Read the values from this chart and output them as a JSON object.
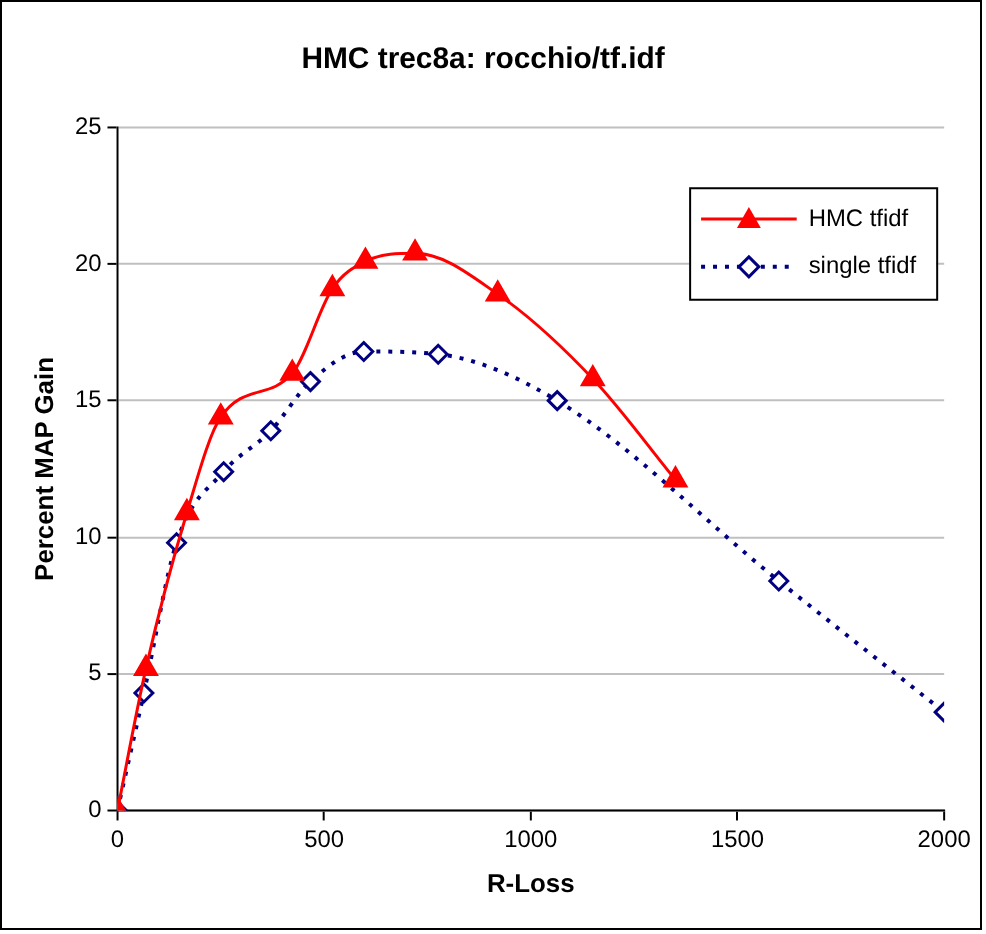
{
  "chart_data": {
    "type": "line",
    "title": "HMC trec8a: rocchio/tf.idf",
    "xlabel": "R-Loss",
    "ylabel": "Percent MAP Gain",
    "xlim": [
      0,
      2000
    ],
    "xticks": [
      0,
      500,
      1000,
      1500,
      2000
    ],
    "ylim": [
      0,
      25
    ],
    "yticks": [
      0,
      5,
      10,
      15,
      20,
      25
    ],
    "grid": "y",
    "legend": "top right",
    "series": [
      {
        "name": "HMC tfidf",
        "color": "#ff0000",
        "marker": "triangle",
        "line_style": "solid",
        "x": [
          0,
          69,
          168,
          250,
          423,
          520,
          600,
          720,
          920,
          1150,
          1350
        ],
        "values": [
          0,
          5.2,
          10.9,
          14.4,
          16.0,
          19.1,
          20.1,
          20.4,
          18.9,
          15.8,
          12.1
        ]
      },
      {
        "name": "single tfidf",
        "color": "#000080",
        "marker": "diamond",
        "line_style": "dotted",
        "x": [
          0,
          64,
          143,
          257,
          371,
          467,
          596,
          776,
          1064,
          1600,
          2000
        ],
        "values": [
          0,
          4.3,
          9.8,
          12.4,
          13.9,
          15.7,
          16.8,
          16.7,
          15.0,
          8.4,
          3.6
        ]
      }
    ]
  }
}
